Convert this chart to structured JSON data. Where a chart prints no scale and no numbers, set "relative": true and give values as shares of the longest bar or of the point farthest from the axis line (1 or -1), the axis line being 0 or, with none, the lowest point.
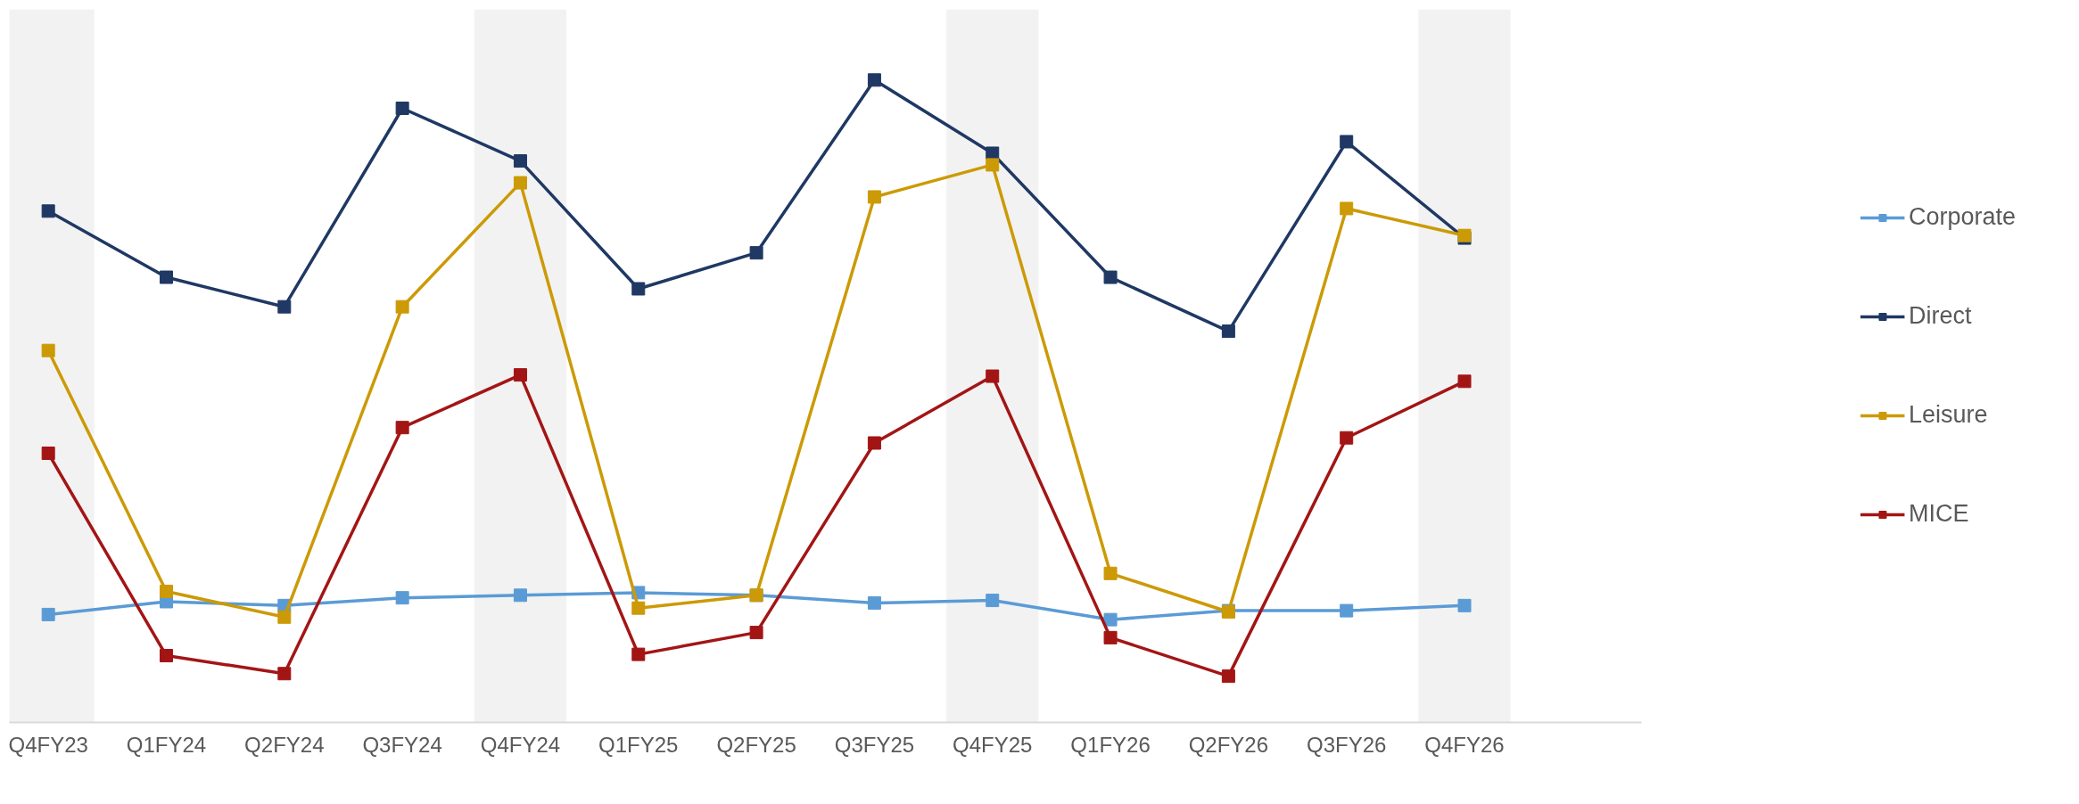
{
  "chart_data": {
    "type": "line",
    "relative": true,
    "marker": "square",
    "grid": false,
    "legend": "right",
    "line_style": "solid",
    "categories": [
      "Q4FY23",
      "Q1FY24",
      "Q2FY24",
      "Q3FY24",
      "Q4FY24",
      "Q1FY25",
      "Q2FY25",
      "Q3FY25",
      "Q4FY25",
      "Q1FY26",
      "Q2FY26",
      "Q3FY26",
      "Q4FY26"
    ],
    "series": [
      {
        "name": "Corporate",
        "color": "#5b9bd5",
        "values": [
          0.168,
          0.188,
          0.182,
          0.194,
          0.198,
          0.202,
          0.198,
          0.186,
          0.19,
          0.16,
          0.174,
          0.174,
          0.182
        ]
      },
      {
        "name": "Direct",
        "color": "#1f3864",
        "values": [
          0.796,
          0.693,
          0.647,
          0.956,
          0.874,
          0.675,
          0.731,
          1,
          0.886,
          0.693,
          0.609,
          0.904,
          0.754
        ]
      },
      {
        "name": "Leisure",
        "color": "#cc9a06",
        "values": [
          0.579,
          0.204,
          0.164,
          0.647,
          0.84,
          0.178,
          0.198,
          0.818,
          0.868,
          0.232,
          0.172,
          0.8,
          0.758
        ]
      },
      {
        "name": "MICE",
        "color": "#a31515",
        "values": [
          0.419,
          0.104,
          0.076,
          0.459,
          0.541,
          0.106,
          0.14,
          0.435,
          0.539,
          0.132,
          0.072,
          0.443,
          0.531
        ]
      }
    ],
    "bands": [
      {
        "axis": "x",
        "from": "Q4FY23",
        "to": "Q4FY23",
        "color": "#f2f2f2"
      },
      {
        "axis": "x",
        "from": "Q4FY24",
        "to": "Q4FY24",
        "color": "#f2f2f2"
      },
      {
        "axis": "x",
        "from": "Q4FY25",
        "to": "Q4FY25",
        "color": "#f2f2f2"
      },
      {
        "axis": "x",
        "from": "Q4FY26",
        "to": "Q4FY26",
        "color": "#f2f2f2"
      }
    ]
  }
}
